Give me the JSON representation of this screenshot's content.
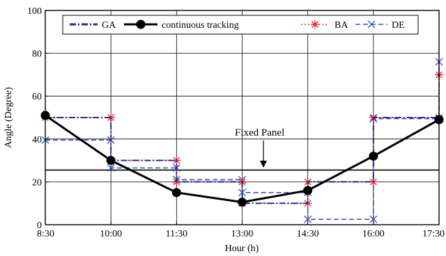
{
  "chart_data": {
    "type": "line",
    "title": "",
    "xlabel": "Hour (h)",
    "ylabel": "Angle (Degree)",
    "x_categories": [
      "8:30",
      "10:00",
      "11:30",
      "13:00",
      "14:30",
      "16:00",
      "17:30"
    ],
    "y_ticks": [
      "0",
      "20",
      "40",
      "60",
      "80",
      "100"
    ],
    "ylim": [
      0,
      100
    ],
    "grid": true,
    "legend": {
      "placement": "top",
      "entries": [
        {
          "name": "GA",
          "color": "#1f2f8f",
          "style": "dash-dot"
        },
        {
          "name": "continuous tracking",
          "color": "#000000",
          "style": "solid-circle"
        },
        {
          "name": "BA",
          "color": "#e8202a",
          "style": "dotted-star"
        },
        {
          "name": "DE",
          "color": "#3a57b5",
          "style": "dashed-x"
        }
      ]
    },
    "annotations": [
      {
        "text": "Fixed Panel",
        "points_to": "fixed panel line",
        "y": 25.5
      }
    ],
    "series": [
      {
        "name": "GA",
        "color": "#1f2f8f",
        "step_points": [
          [
            0,
            50
          ],
          [
            1,
            50
          ],
          [
            1,
            30
          ],
          [
            2,
            30
          ],
          [
            2,
            20
          ],
          [
            3,
            20
          ],
          [
            3,
            10
          ],
          [
            4,
            10
          ],
          [
            4,
            20
          ],
          [
            5,
            20
          ],
          [
            5,
            50
          ],
          [
            6,
            50
          ]
        ]
      },
      {
        "name": "continuous tracking",
        "color": "#000000",
        "points": [
          [
            0,
            51
          ],
          [
            1,
            30
          ],
          [
            2,
            15
          ],
          [
            3,
            10.5
          ],
          [
            4,
            16
          ],
          [
            5,
            32
          ],
          [
            6,
            49
          ]
        ]
      },
      {
        "name": "BA",
        "color": "#e8202a",
        "step_points": [
          [
            0,
            50
          ],
          [
            1,
            50
          ],
          [
            1,
            30
          ],
          [
            2,
            30
          ],
          [
            2,
            20
          ],
          [
            3,
            20
          ],
          [
            3,
            10
          ],
          [
            4,
            10
          ],
          [
            4,
            20
          ],
          [
            5,
            20
          ],
          [
            5,
            50
          ],
          [
            6,
            50
          ],
          [
            6,
            70
          ]
        ]
      },
      {
        "name": "DE",
        "color": "#3a57b5",
        "step_points": [
          [
            0,
            39.5
          ],
          [
            1,
            39.5
          ],
          [
            1,
            26.5
          ],
          [
            2,
            26.5
          ],
          [
            2,
            21
          ],
          [
            3,
            21
          ],
          [
            3,
            15
          ],
          [
            4,
            15
          ],
          [
            4,
            2.5
          ],
          [
            5,
            2.5
          ],
          [
            5,
            49.5
          ],
          [
            6,
            49.5
          ],
          [
            6,
            76
          ]
        ]
      },
      {
        "name": "Fixed Panel",
        "color": "#000000",
        "points": [
          [
            0,
            25.5
          ],
          [
            6,
            25.5
          ]
        ]
      }
    ]
  }
}
